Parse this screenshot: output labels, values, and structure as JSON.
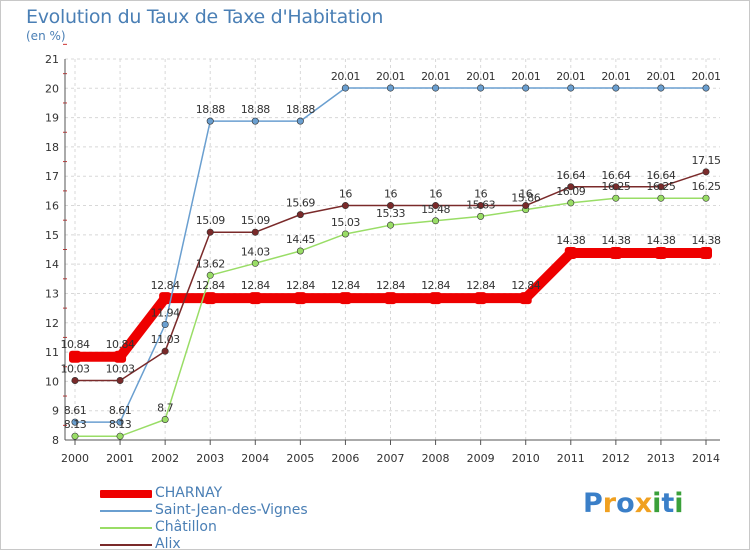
{
  "chart_data": {
    "type": "line",
    "title": "Evolution du Taux de Taxe d'Habitation",
    "subtitle": "(en %)",
    "x": [
      "2000",
      "2001",
      "2002",
      "2003",
      "2004",
      "2005",
      "2006",
      "2007",
      "2008",
      "2009",
      "2010",
      "2011",
      "2012",
      "2013",
      "2014"
    ],
    "ylim": [
      8,
      21
    ],
    "yticks": [
      8,
      9,
      10,
      11,
      12,
      13,
      14,
      15,
      16,
      17,
      18,
      19,
      20,
      21
    ],
    "grid": true,
    "series": [
      {
        "name": "CHARNAY",
        "color": "#ee0000",
        "values": [
          10.84,
          10.84,
          12.84,
          12.84,
          12.84,
          12.84,
          12.84,
          12.84,
          12.84,
          12.84,
          12.84,
          14.38,
          14.38,
          14.38,
          14.38
        ],
        "labels": [
          "10.84",
          "10.84",
          "12.84",
          "12.84",
          "12.84",
          "12.84",
          "12.84",
          "12.84",
          "12.84",
          "12.84",
          "12.84",
          "14.38",
          "14.38",
          "14.38",
          "14.38"
        ]
      },
      {
        "name": "Saint-Jean-des-Vignes",
        "color": "#6a9fd0",
        "values": [
          8.61,
          8.61,
          11.94,
          18.88,
          18.88,
          18.88,
          20.01,
          20.01,
          20.01,
          20.01,
          20.01,
          20.01,
          20.01,
          20.01,
          20.01
        ],
        "labels": [
          "8.61",
          "8.61",
          "11.94",
          "18.88",
          "18.88",
          "18.88",
          "20.01",
          "20.01",
          "20.01",
          "20.01",
          "20.01",
          "20.01",
          "20.01",
          "20.01",
          "20.01"
        ]
      },
      {
        "name": "Châtillon",
        "color": "#99dd66",
        "values": [
          8.13,
          8.13,
          8.7,
          13.62,
          14.03,
          14.45,
          15.03,
          15.33,
          15.48,
          15.63,
          15.86,
          16.09,
          16.25,
          16.25,
          16.25
        ],
        "labels": [
          "8.13",
          "8.13",
          "8.7",
          "13.62",
          "14.03",
          "14.45",
          "15.03",
          "15.33",
          "15.48",
          "15.63",
          "15.86",
          "16.09",
          "16.25",
          "16.25",
          "16.25"
        ]
      },
      {
        "name": "Alix",
        "color": "#7a2a2a",
        "values": [
          10.03,
          10.03,
          11.03,
          15.09,
          15.09,
          15.69,
          16,
          16,
          16,
          16,
          16,
          16.64,
          16.64,
          16.64,
          17.15
        ],
        "labels": [
          "10.03",
          "10.03",
          "11.03",
          "15.09",
          "15.09",
          "15.69",
          "16",
          "16",
          "16",
          "16",
          "16",
          "16.64",
          "16.64",
          "16.64",
          "17.15"
        ]
      }
    ]
  },
  "logo": {
    "text": "Proxiti",
    "letters": [
      "P",
      "r",
      "o",
      "x",
      "i",
      "t",
      "i"
    ],
    "colors": [
      "#3a7fc8",
      "#f0a020",
      "#3a7fc8",
      "#f0a020",
      "#3aa03a",
      "#3a7fc8",
      "#3aa03a"
    ]
  }
}
